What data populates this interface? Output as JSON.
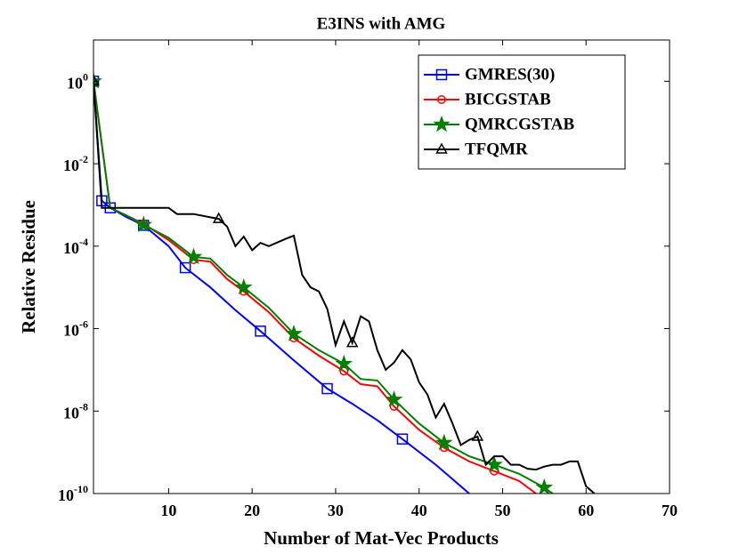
{
  "chart_data": {
    "type": "line",
    "title": "E3INS with AMG",
    "xlabel": "Number of Mat-Vec Products",
    "ylabel": "Relative Residue",
    "xlim": [
      1,
      70
    ],
    "xticks": [
      10,
      20,
      30,
      40,
      50,
      60,
      70
    ],
    "ylim": [
      1e-10,
      10
    ],
    "log_y": true,
    "yticks": [
      {
        "value": 1e-10,
        "label": "10^-10"
      },
      {
        "value": 1e-08,
        "label": "10^-8"
      },
      {
        "value": 1e-06,
        "label": "10^-6"
      },
      {
        "value": 0.0001,
        "label": "10^-4"
      },
      {
        "value": 0.01,
        "label": "10^-2"
      },
      {
        "value": 1,
        "label": "10^0"
      }
    ],
    "legend": "upper right",
    "series": [
      {
        "name": "GMRES(30)",
        "color": "#0000ff",
        "marker": "square",
        "x": [
          1,
          2,
          3,
          5,
          7,
          10,
          12,
          15,
          18,
          21,
          25,
          29,
          32,
          35,
          38,
          42,
          46
        ],
        "values": [
          1,
          0.00126,
          0.00085,
          0.0005,
          0.00032,
          0.0001,
          3e-05,
          1e-05,
          2.8e-06,
          8.7e-07,
          1.7e-07,
          3.5e-08,
          1.5e-08,
          6e-09,
          2.1e-09,
          5e-10,
          1e-10
        ],
        "marker_points": [
          0,
          1,
          2,
          4,
          6,
          9,
          11,
          14
        ]
      },
      {
        "name": "BICGSTAB",
        "color": "#ff0000",
        "marker": "circle",
        "x": [
          1,
          3,
          5,
          7,
          10,
          13,
          15,
          17,
          19,
          22,
          25,
          28,
          31,
          33,
          35,
          37,
          40,
          43,
          46,
          49,
          52,
          54
        ],
        "values": [
          1,
          0.00085,
          0.00055,
          0.00035,
          0.00014,
          4.7e-05,
          4.2e-05,
          1.6e-05,
          8e-06,
          2.5e-06,
          5.9e-07,
          2.2e-07,
          9.3e-08,
          4.5e-08,
          4e-08,
          1.3e-08,
          3.5e-09,
          1.3e-09,
          6e-10,
          3.5e-10,
          2e-10,
          1e-10
        ],
        "marker_points": [
          3,
          5,
          8,
          10,
          12,
          15,
          17,
          19
        ]
      },
      {
        "name": "QMRCGSTAB",
        "color": "#008000",
        "marker": "star",
        "x": [
          1,
          3,
          5,
          7,
          10,
          13,
          15,
          17,
          19,
          22,
          25,
          28,
          31,
          33,
          35,
          37,
          40,
          43,
          46,
          49,
          52,
          55,
          56
        ],
        "values": [
          1,
          0.00085,
          0.00055,
          0.00033,
          0.00016,
          5.5e-05,
          5e-05,
          2e-05,
          1e-05,
          3.2e-06,
          7.5e-07,
          3e-07,
          1.4e-07,
          6e-08,
          5.5e-08,
          1.9e-08,
          5e-09,
          1.7e-09,
          8e-10,
          5e-10,
          3e-10,
          1.4e-10,
          1e-10
        ],
        "marker_points": [
          0,
          3,
          5,
          8,
          10,
          12,
          15,
          17,
          19,
          21
        ]
      },
      {
        "name": "TFQMR",
        "color": "#000000",
        "marker": "triangle",
        "x": [
          1,
          2,
          4,
          10,
          11,
          13,
          15,
          16,
          17,
          18,
          19,
          20,
          21,
          22,
          24,
          25,
          26,
          27,
          28,
          29,
          30,
          31,
          32,
          33,
          34,
          35,
          36,
          37,
          38,
          39,
          40,
          41,
          42,
          43,
          44,
          45,
          46,
          47,
          48,
          49,
          50,
          51,
          52,
          53,
          54,
          55,
          56,
          57,
          58,
          59,
          60,
          61
        ],
        "values": [
          1,
          0.00085,
          0.00085,
          0.00085,
          0.0006,
          0.0006,
          0.0005,
          0.00046,
          0.0003,
          0.0001,
          0.00017,
          8e-05,
          0.00012,
          0.0001,
          0.00015,
          0.00018,
          2e-05,
          1e-05,
          8e-06,
          3e-06,
          4e-07,
          1.5e-06,
          4.5e-07,
          2e-06,
          1.5e-06,
          3e-07,
          1e-07,
          1.5e-07,
          3e-07,
          1.8e-07,
          5e-08,
          2.5e-08,
          7e-09,
          1.5e-08,
          5e-09,
          1.5e-09,
          2e-09,
          2.4e-09,
          5e-10,
          8e-10,
          8e-10,
          5e-10,
          5e-10,
          4e-10,
          3.8e-10,
          4.5e-10,
          5e-10,
          5e-10,
          6e-10,
          6e-10,
          1.5e-10,
          1e-10
        ],
        "marker_points": [
          0,
          7,
          22,
          37
        ]
      }
    ]
  }
}
